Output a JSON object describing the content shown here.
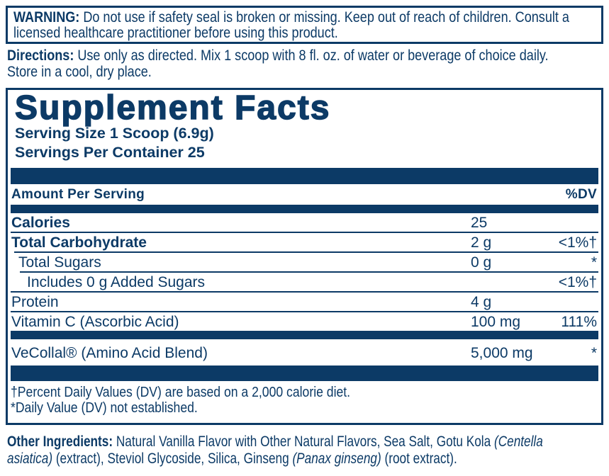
{
  "colors": {
    "navy": "#0c3a66",
    "background": "#ffffff"
  },
  "warning": {
    "lines": [
      [
        {
          "t": "WARNING: ",
          "s": "b"
        },
        {
          "t": "Do not use if safety seal is broken or missing. Keep out of reach of children. Consult a",
          "s": "r"
        }
      ],
      [
        {
          "t": "licensed healthcare practitioner before using this product.",
          "s": "r"
        }
      ]
    ]
  },
  "directions": {
    "lines": [
      [
        {
          "t": "Directions: ",
          "s": "b"
        },
        {
          "t": "Use only as directed. Mix 1 scoop with 8 fl. oz. of water or beverage of choice daily.",
          "s": "r"
        }
      ],
      [
        {
          "t": "Store in a cool, dry place.",
          "s": "r"
        }
      ]
    ]
  },
  "supplement_facts": {
    "title": "Supplement Facts",
    "serving_size": "Serving Size 1 Scoop (6.9g)",
    "servings_per_container": "Servings Per Container 25",
    "header": {
      "amount_label": "Amount Per Serving",
      "dv_label": "%DV"
    },
    "body": [
      {
        "type": "row",
        "name": "Calories",
        "amount": "25",
        "dv": "",
        "bold": true,
        "indent": 0,
        "sep": "full"
      },
      {
        "type": "row",
        "name": "Total Carbohydrate",
        "amount": "2 g",
        "dv": "<1%†",
        "bold": true,
        "indent": 0,
        "sep": "l1"
      },
      {
        "type": "row",
        "name": "Total Sugars",
        "amount": "0 g",
        "dv": "*",
        "bold": false,
        "indent": 1,
        "sep": "l2"
      },
      {
        "type": "row",
        "name": "Includes 0 g Added Sugars",
        "amount": "",
        "dv": "<1%†",
        "bold": false,
        "indent": 2,
        "sep": "full"
      },
      {
        "type": "row",
        "name": "Protein",
        "amount": "4 g",
        "dv": "",
        "bold": false,
        "indent": 0,
        "sep": "full"
      },
      {
        "type": "row",
        "name": "Vitamin C (Ascorbic Acid)",
        "amount": "100 mg",
        "dv": "111%",
        "bold": false,
        "indent": 0,
        "sep": "none"
      },
      {
        "type": "bar",
        "size": "md"
      },
      {
        "type": "row",
        "name": "VeCollal® (Amino Acid Blend)",
        "amount": "5,000 mg",
        "dv": "*",
        "bold": false,
        "indent": 0,
        "sep": "none",
        "tall": true
      },
      {
        "type": "bar",
        "size": "xl"
      }
    ],
    "footnotes": [
      "†Percent Daily Values (DV) are based on a 2,000 calorie diet.",
      "*Daily Value (DV) not established."
    ]
  },
  "other_ingredients": {
    "lines": [
      [
        {
          "t": "Other Ingredients: ",
          "s": "b"
        },
        {
          "t": "Natural Vanilla Flavor with Other Natural Flavors, Sea Salt, Gotu Kola ",
          "s": "r"
        },
        {
          "t": "(Centella",
          "s": "i"
        }
      ],
      [
        {
          "t": "asiatica)",
          "s": "i"
        },
        {
          "t": " (extract), Steviol Glycoside, Silica, Ginseng ",
          "s": "r"
        },
        {
          "t": "(Panax ginseng)",
          "s": "i"
        },
        {
          "t": " (root extract).",
          "s": "r"
        }
      ]
    ]
  }
}
